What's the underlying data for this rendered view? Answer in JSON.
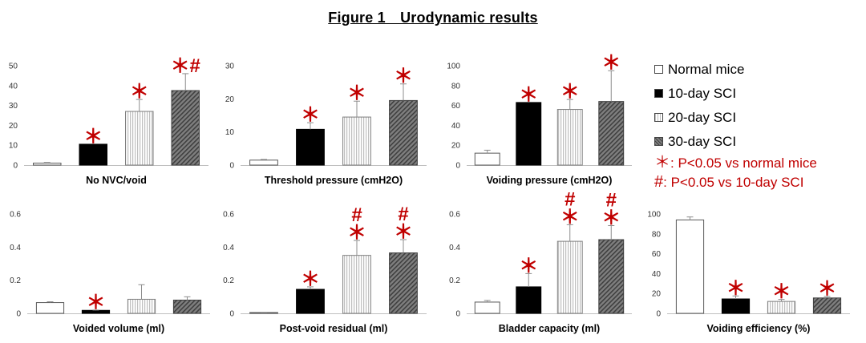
{
  "figure_title": "Figure 1　Urodynamic results",
  "legend": {
    "items": [
      {
        "name": "Normal mice",
        "pattern": "white"
      },
      {
        "name": "10-day SCI",
        "pattern": "black"
      },
      {
        "name": "20-day SCI",
        "pattern": "light-stripes"
      },
      {
        "name": "30-day SCI",
        "pattern": "dark-hatch"
      }
    ],
    "notes": [
      {
        "symbol": "＊",
        "text": ": P<0.05 vs normal mice"
      },
      {
        "symbol": "#",
        "text": ": P<0.05 vs 10-day SCI"
      }
    ]
  },
  "colors": {
    "significance_marks": "#c00000",
    "black_bar": "#000000",
    "light_stripe": "#bfbfbf",
    "dark_hatch": "#595959"
  },
  "chart_data": [
    {
      "type": "bar",
      "xlabel": "No NVC/void",
      "ylim": [
        0,
        50
      ],
      "yticks": [
        0,
        10,
        20,
        30,
        40,
        50
      ],
      "categories": [
        "Normal mice",
        "10-day SCI",
        "20-day SCI",
        "30-day SCI"
      ],
      "values": [
        1,
        10.5,
        27,
        37.5
      ],
      "errors": [
        0.3,
        0,
        6,
        8.5
      ],
      "marks": [
        "",
        "＊",
        "＊",
        "＊#"
      ]
    },
    {
      "type": "bar",
      "xlabel": "Threshold pressure (cmH2O)",
      "ylim": [
        0,
        30
      ],
      "yticks": [
        0,
        10,
        20,
        30
      ],
      "categories": [
        "Normal mice",
        "10-day SCI",
        "20-day SCI",
        "30-day SCI"
      ],
      "values": [
        1.5,
        10.8,
        14.5,
        19.5
      ],
      "errors": [
        0.2,
        2,
        4.8,
        5
      ],
      "marks": [
        "",
        "＊",
        "＊",
        "＊"
      ]
    },
    {
      "type": "bar",
      "xlabel": "Voiding pressure (cmH2O)",
      "ylim": [
        0,
        100
      ],
      "yticks": [
        0,
        20,
        40,
        60,
        80,
        100
      ],
      "categories": [
        "Normal mice",
        "10-day SCI",
        "20-day SCI",
        "30-day SCI"
      ],
      "values": [
        12,
        63,
        56,
        64
      ],
      "errors": [
        3,
        0,
        10,
        31
      ],
      "marks": [
        "",
        "＊",
        "＊",
        "＊"
      ]
    },
    {
      "type": "bar",
      "xlabel": "Voided volume (ml)",
      "ylim": [
        0,
        0.6
      ],
      "yticks": [
        0,
        0.2,
        0.4,
        0.6
      ],
      "categories": [
        "Normal mice",
        "10-day SCI",
        "20-day SCI",
        "30-day SCI"
      ],
      "values": [
        0.065,
        0.018,
        0.085,
        0.08
      ],
      "errors": [
        0.005,
        0.002,
        0.088,
        0.02
      ],
      "marks": [
        "",
        "＊",
        "",
        ""
      ]
    },
    {
      "type": "bar",
      "xlabel": "Post-void residual (ml)",
      "ylim": [
        0,
        0.6
      ],
      "yticks": [
        0,
        0.2,
        0.4,
        0.6
      ],
      "categories": [
        "Normal mice",
        "10-day SCI",
        "20-day SCI",
        "30-day SCI"
      ],
      "values": [
        0.005,
        0.145,
        0.35,
        0.365
      ],
      "errors": [
        0.001,
        0.015,
        0.09,
        0.08
      ],
      "marks": [
        "",
        "＊",
        "#\n＊",
        "#\n＊"
      ]
    },
    {
      "type": "bar",
      "xlabel": "Bladder capacity (ml)",
      "ylim": [
        0,
        0.6
      ],
      "yticks": [
        0,
        0.2,
        0.4,
        0.6
      ],
      "categories": [
        "Normal mice",
        "10-day SCI",
        "20-day SCI",
        "30-day SCI"
      ],
      "values": [
        0.068,
        0.16,
        0.435,
        0.445
      ],
      "errors": [
        0.01,
        0.08,
        0.1,
        0.085
      ],
      "marks": [
        "",
        "＊",
        "#\n＊",
        "#\n＊"
      ]
    },
    {
      "type": "bar",
      "xlabel": "Voiding efficiency (%)",
      "ylim": [
        0,
        100
      ],
      "yticks": [
        0,
        20,
        40,
        60,
        80,
        100
      ],
      "categories": [
        "Normal mice",
        "10-day SCI",
        "20-day SCI",
        "30-day SCI"
      ],
      "values": [
        94,
        14.5,
        12,
        15.5
      ],
      "errors": [
        3,
        3,
        2,
        1.5
      ],
      "marks": [
        "",
        "＊",
        "＊",
        "＊"
      ]
    }
  ]
}
